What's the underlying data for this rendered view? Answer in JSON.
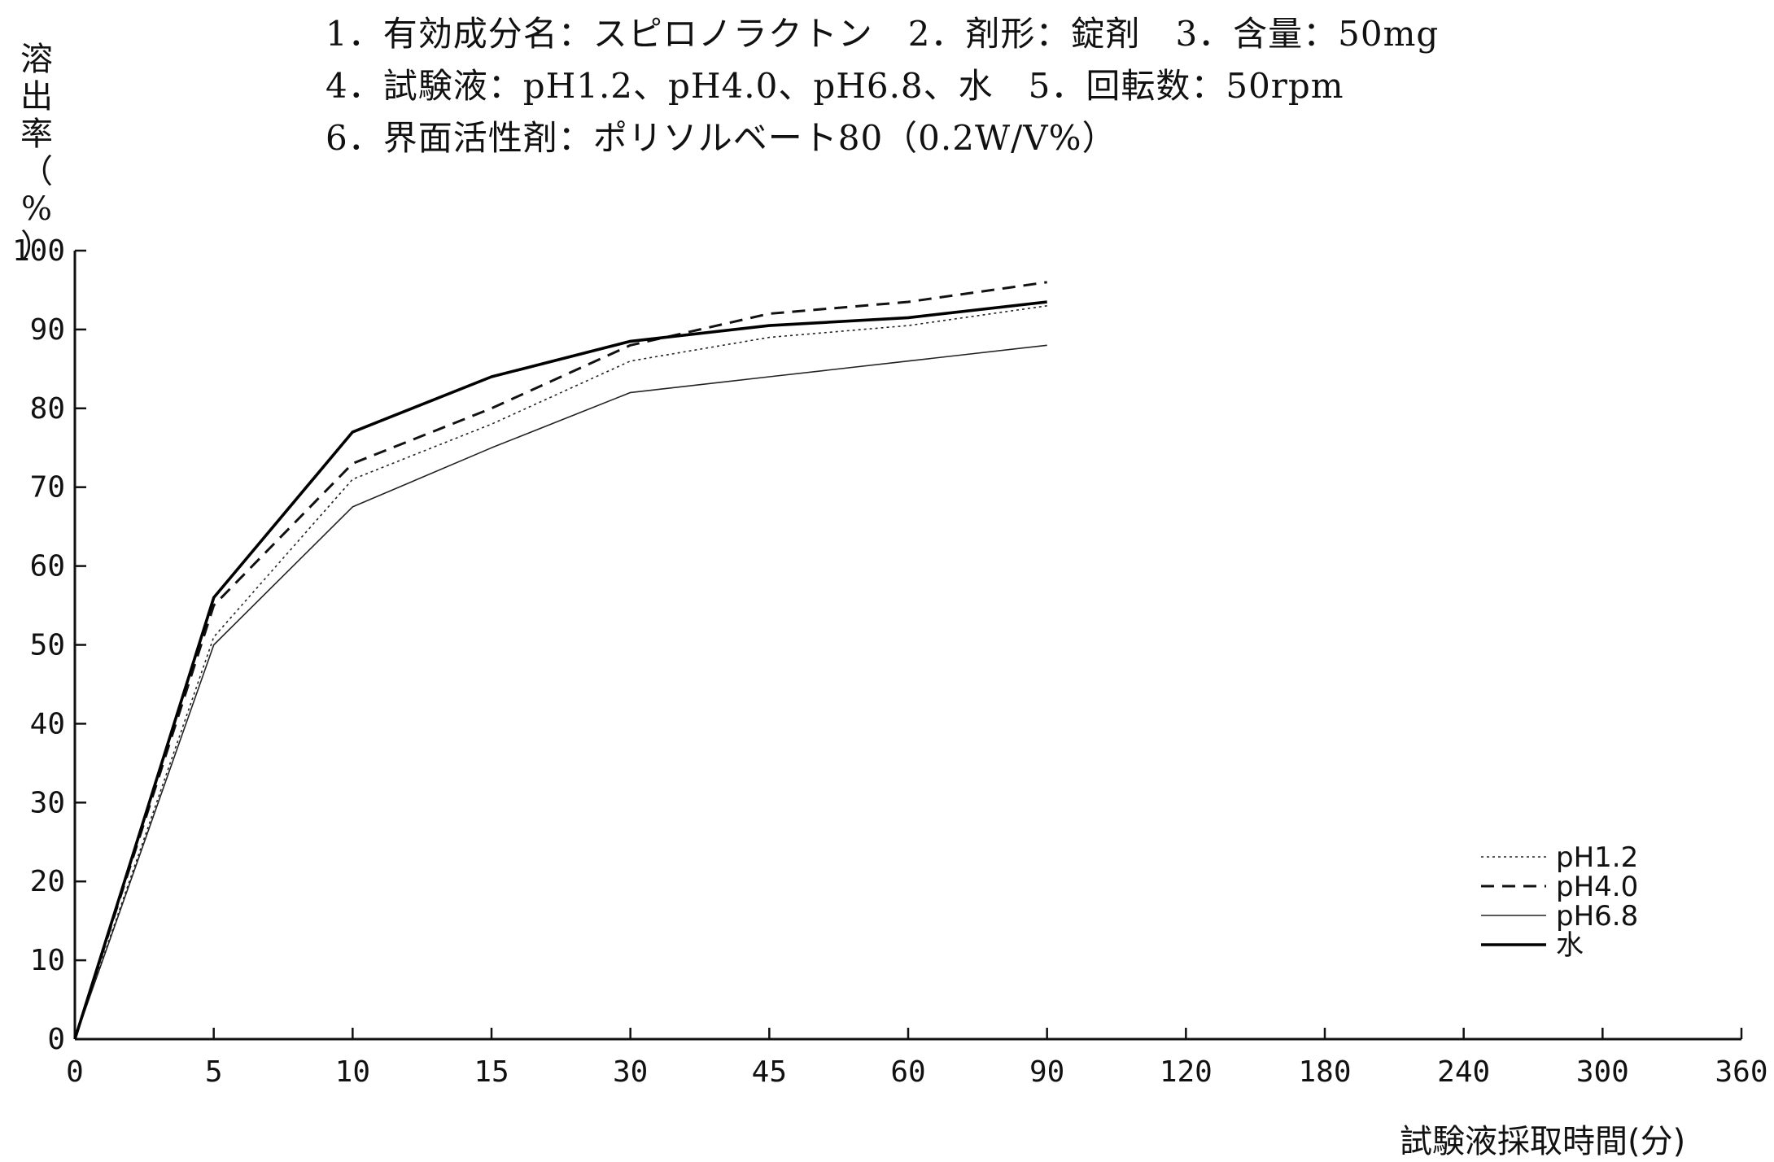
{
  "header": {
    "line1": "1．有効成分名：スピロノラクトン　2．剤形：錠剤　3．含量：50mg",
    "line2": "4．試験液：pH1.2、pH4.0、pH6.8、水　5．回転数：50rpm",
    "line3": "6．界面活性剤：ポリソルベート80（0.2W/V%）"
  },
  "chart_data": {
    "type": "line",
    "ylabel": "溶出率（%）",
    "xlabel": "試験液採取時間(分)",
    "categories": [
      "0",
      "5",
      "10",
      "15",
      "30",
      "45",
      "60",
      "90",
      "120",
      "180",
      "240",
      "300",
      "360"
    ],
    "ylim": [
      0,
      100
    ],
    "yticks": [
      "0",
      "10",
      "20",
      "30",
      "40",
      "50",
      "60",
      "70",
      "80",
      "90",
      "100"
    ],
    "grid": false,
    "legend_position": "bottom-right",
    "series": [
      {
        "name": "pH1.2",
        "style": "dotted",
        "color": "#222222",
        "x": [
          "0",
          "5",
          "10",
          "15",
          "30",
          "45",
          "60",
          "90"
        ],
        "values": [
          0,
          51,
          71,
          78,
          86,
          89,
          90.5,
          93
        ]
      },
      {
        "name": "pH4.0",
        "style": "dashed",
        "color": "#111111",
        "x": [
          "0",
          "5",
          "10",
          "15",
          "30",
          "45",
          "60",
          "90"
        ],
        "values": [
          0,
          55,
          73,
          80,
          88,
          92,
          93.5,
          96
        ]
      },
      {
        "name": "pH6.8",
        "style": "thin",
        "color": "#222222",
        "x": [
          "0",
          "5",
          "10",
          "15",
          "30",
          "45",
          "60",
          "90"
        ],
        "values": [
          0,
          50,
          67.5,
          75,
          82,
          84,
          86,
          88
        ]
      },
      {
        "name": "水",
        "style": "thick",
        "color": "#000000",
        "x": [
          "0",
          "5",
          "10",
          "15",
          "30",
          "45",
          "60",
          "90"
        ],
        "values": [
          0,
          56,
          77,
          84,
          88.5,
          90.5,
          91.5,
          93.5
        ]
      }
    ]
  }
}
